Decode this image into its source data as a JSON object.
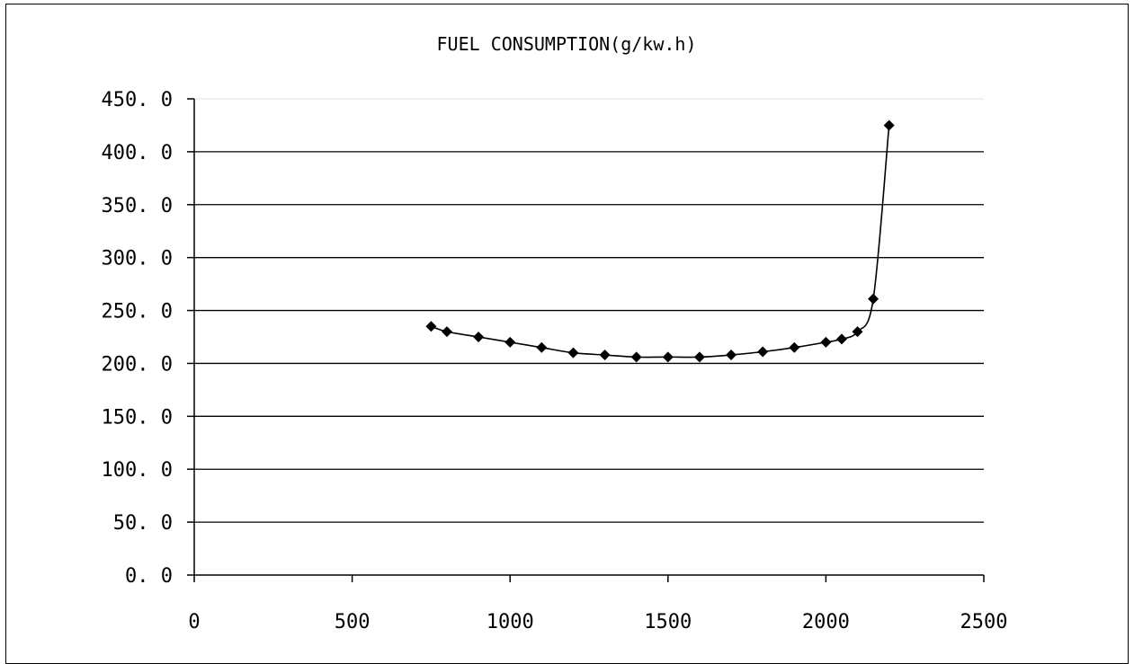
{
  "chart_data": {
    "type": "line",
    "title": "FUEL CONSUMPTION(g/kw.h)",
    "xlabel": "",
    "ylabel": "",
    "xlim": [
      0,
      2500
    ],
    "ylim": [
      0,
      450
    ],
    "x_ticks": [
      0,
      500,
      1000,
      1500,
      2000,
      2500
    ],
    "x_tick_labels": [
      "0",
      "500",
      "1000",
      "1500",
      "2000",
      "2500"
    ],
    "y_ticks": [
      0,
      50,
      100,
      150,
      200,
      250,
      300,
      350,
      400,
      450
    ],
    "y_tick_labels": [
      "0. 0",
      "50. 0",
      "100. 0",
      "150. 0",
      "200. 0",
      "250. 0",
      "300. 0",
      "350. 0",
      "400. 0",
      "450. 0"
    ],
    "grid": true,
    "legend": "none",
    "marker": "diamond",
    "color": "#000000",
    "series": [
      {
        "x": [
          750,
          800,
          900,
          1000,
          1100,
          1200,
          1300,
          1400,
          1500,
          1600,
          1700,
          1800,
          1900,
          2000,
          2050,
          2100,
          2150,
          2200
        ],
        "y": [
          235,
          230,
          225,
          220,
          215,
          210,
          208,
          206,
          206,
          206,
          208,
          211,
          215,
          220,
          223,
          230,
          261,
          425
        ]
      }
    ]
  }
}
